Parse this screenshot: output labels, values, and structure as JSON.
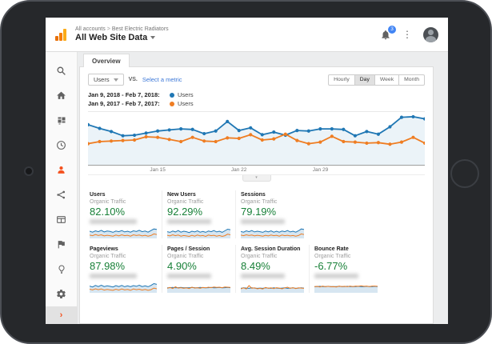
{
  "brand": {
    "logo_bar_colors": [
      "#e8710a",
      "#f57c00",
      "#fbab18"
    ],
    "accent_orange": "#f4511e",
    "link_blue": "#3c78d8",
    "positive_green": "#188038",
    "series_blue": "#1f77b4",
    "series_orange": "#ef7d22",
    "badge_blue": "#4285f4"
  },
  "header": {
    "breadcrumb": {
      "parts": [
        "All accounts",
        "Best Electric Radiators"
      ],
      "separator": ">"
    },
    "title": "All Web Site Data",
    "notification_count": "3"
  },
  "sidebar": {
    "items": [
      "search",
      "home",
      "customization",
      "realtime",
      "audience",
      "acquisition",
      "behavior",
      "conversions",
      "discover",
      "admin"
    ],
    "active": "audience"
  },
  "tabs": {
    "overview": "Overview"
  },
  "controls": {
    "metric_selector": "Users",
    "vs_label": "VS.",
    "select_metric_link": "Select a metric",
    "granularity": [
      "Hourly",
      "Day",
      "Week",
      "Month"
    ],
    "granularity_active": "Day"
  },
  "legend": [
    {
      "range": "Jan 9, 2018 - Feb 7, 2018:",
      "series": "Users",
      "color": "#1f77b4"
    },
    {
      "range": "Jan 9, 2017 - Feb 7, 2017:",
      "series": "Users",
      "color": "#ef7d22"
    }
  ],
  "chart_data": {
    "type": "line",
    "title": "Users: Jan 9, 2018 - Feb 7, 2018 vs Jan 9, 2017 - Feb 7, 2017",
    "xlabel": "",
    "ylabel": "Users",
    "x_ticks": [
      {
        "label": "Jan 15",
        "pos": 0.207
      },
      {
        "label": "Jan 22",
        "pos": 0.448
      },
      {
        "label": "Jan 29",
        "pos": 0.69
      }
    ],
    "ylim": [
      0,
      100
    ],
    "grid": false,
    "legend_position": "top",
    "series": [
      {
        "name": "Users (Jan 9, 2018 - Feb 7, 2018)",
        "color": "#1f77b4",
        "fill": true,
        "values": [
          76,
          69,
          63,
          55,
          56,
          60,
          64,
          66,
          68,
          67,
          59,
          64,
          82,
          65,
          70,
          57,
          62,
          56,
          65,
          64,
          68,
          68,
          67,
          55,
          63,
          58,
          72,
          90,
          91,
          87
        ]
      },
      {
        "name": "Users (Jan 9, 2017 - Feb 7, 2017)",
        "color": "#ef7d22",
        "fill": false,
        "values": [
          40,
          44,
          45,
          46,
          47,
          53,
          52,
          48,
          44,
          52,
          45,
          44,
          51,
          50,
          57,
          47,
          49,
          58,
          46,
          40,
          43,
          54,
          44,
          43,
          41,
          42,
          39,
          43,
          52,
          41
        ]
      }
    ]
  },
  "cards": [
    {
      "title": "Users",
      "segment": "Organic Traffic",
      "value": "82.10%",
      "spark": {
        "blue": [
          62,
          58,
          64,
          60,
          66,
          59,
          63,
          61,
          57,
          63,
          60,
          65,
          59,
          62,
          58,
          64,
          61,
          66,
          60,
          63,
          58,
          65,
          72,
          70
        ],
        "orange": [
          45,
          42,
          47,
          43,
          46,
          41,
          44,
          42,
          40,
          45,
          41,
          46,
          42,
          44,
          40,
          46,
          43,
          45,
          41,
          44,
          40,
          43,
          50,
          47
        ]
      }
    },
    {
      "title": "New Users",
      "segment": "Organic Traffic",
      "value": "92.29%",
      "spark": {
        "blue": [
          60,
          57,
          63,
          59,
          65,
          58,
          62,
          60,
          56,
          62,
          59,
          64,
          58,
          61,
          57,
          63,
          60,
          65,
          59,
          62,
          57,
          64,
          71,
          69
        ],
        "orange": [
          44,
          41,
          46,
          42,
          45,
          40,
          43,
          41,
          39,
          44,
          40,
          45,
          41,
          43,
          39,
          45,
          42,
          44,
          40,
          43,
          39,
          42,
          49,
          46
        ]
      }
    },
    {
      "title": "Sessions",
      "segment": "Organic Traffic",
      "value": "79.19%",
      "spark": {
        "blue": [
          61,
          58,
          64,
          60,
          65,
          59,
          62,
          60,
          57,
          63,
          59,
          64,
          58,
          62,
          58,
          63,
          60,
          65,
          59,
          62,
          58,
          64,
          72,
          70
        ],
        "orange": [
          45,
          42,
          46,
          43,
          45,
          41,
          44,
          42,
          40,
          44,
          41,
          45,
          42,
          44,
          40,
          45,
          42,
          44,
          41,
          43,
          40,
          43,
          50,
          47
        ]
      }
    },
    {
      "title": "Pageviews",
      "segment": "Organic Traffic",
      "value": "87.98%",
      "spark": {
        "blue": [
          60,
          56,
          63,
          58,
          64,
          58,
          61,
          59,
          56,
          62,
          58,
          63,
          57,
          61,
          57,
          62,
          59,
          64,
          58,
          61,
          57,
          63,
          71,
          68
        ],
        "orange": [
          46,
          43,
          48,
          44,
          47,
          42,
          45,
          43,
          41,
          46,
          42,
          47,
          43,
          45,
          41,
          47,
          44,
          46,
          42,
          45,
          41,
          44,
          51,
          48
        ]
      }
    },
    {
      "title": "Pages / Session",
      "segment": "Organic Traffic",
      "value": "4.90%",
      "spark": {
        "blue": [
          52,
          53,
          54,
          52,
          53,
          54,
          52,
          53,
          52,
          54,
          53,
          52,
          54,
          53,
          52,
          53,
          54,
          52,
          53,
          54,
          52,
          53,
          54,
          53
        ],
        "orange": [
          50,
          54,
          49,
          57,
          51,
          53,
          50,
          52,
          49,
          55,
          51,
          53,
          50,
          54,
          52,
          55,
          53,
          56,
          54,
          55,
          53,
          56,
          55,
          54
        ]
      }
    },
    {
      "title": "Avg. Session Duration",
      "segment": "Organic Traffic",
      "value": "8.49%",
      "spark": {
        "blue": [
          50,
          52,
          51,
          50,
          52,
          51,
          50,
          51,
          50,
          52,
          51,
          50,
          52,
          51,
          50,
          51,
          52,
          50,
          51,
          52,
          50,
          51,
          52,
          51
        ],
        "orange": [
          48,
          52,
          47,
          62,
          50,
          52,
          48,
          50,
          47,
          54,
          50,
          52,
          49,
          53,
          51,
          48,
          52,
          55,
          50,
          53,
          49,
          52,
          51,
          50
        ]
      }
    },
    {
      "title": "Bounce Rate",
      "segment": "Organic Traffic",
      "value": "-6.77%",
      "spark": {
        "blue": [
          58,
          58,
          59,
          58,
          58,
          59,
          58,
          58,
          58,
          59,
          58,
          58,
          59,
          58,
          58,
          58,
          59,
          58,
          58,
          59,
          58,
          58,
          59,
          58
        ],
        "orange": [
          57,
          59,
          56,
          60,
          57,
          59,
          57,
          58,
          56,
          60,
          58,
          59,
          57,
          60,
          58,
          60,
          59,
          61,
          59,
          60,
          58,
          60,
          60,
          59
        ]
      }
    }
  ]
}
